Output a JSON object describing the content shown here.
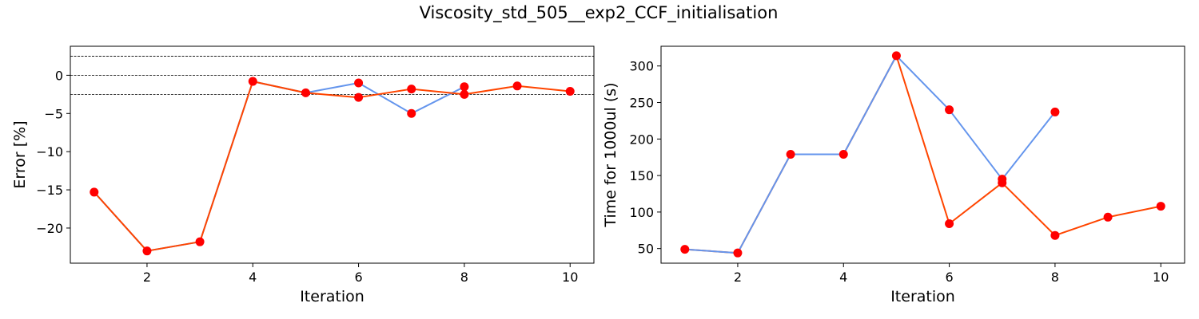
{
  "figure": {
    "title": "Viscosity_std_505__exp2_CCF_initialisation"
  },
  "colors": {
    "series_a": "#6495ED",
    "series_b": "#FF4500",
    "markers": "#FF0000",
    "reference_lines": "#000000"
  },
  "chart_data": [
    {
      "type": "line",
      "xlabel": "Iteration",
      "ylabel": "Error [%]",
      "xlim": [
        0.55,
        10.45
      ],
      "ylim": [
        -24.6,
        3.8
      ],
      "xticks": [
        2,
        4,
        6,
        8,
        10
      ],
      "yticks": [
        0,
        -5,
        -10,
        -15,
        -20
      ],
      "reference_lines": [
        2.5,
        0,
        -2.5
      ],
      "grid": false,
      "series": [
        {
          "color": "#6495ED",
          "x": [
            1,
            2,
            3,
            4,
            5,
            6,
            7,
            8
          ],
          "y": [
            -15.3,
            -23.0,
            -21.8,
            -0.8,
            -2.3,
            -1.0,
            -5.0,
            -1.5
          ]
        },
        {
          "color": "#FF4500",
          "x": [
            1,
            2,
            3,
            4,
            5,
            6,
            7,
            8,
            9,
            10
          ],
          "y": [
            -15.3,
            -23.0,
            -21.8,
            -0.8,
            -2.3,
            -2.9,
            -1.8,
            -2.5,
            -1.4,
            -2.1
          ]
        }
      ],
      "markers": {
        "color": "#FF0000",
        "x": [
          1,
          2,
          3,
          4,
          5,
          6,
          6,
          7,
          7,
          8,
          8,
          9,
          10
        ],
        "y": [
          -15.3,
          -23.0,
          -21.8,
          -0.8,
          -2.3,
          -1.0,
          -2.9,
          -1.8,
          -5.0,
          -1.5,
          -2.5,
          -1.4,
          -2.1
        ]
      }
    },
    {
      "type": "line",
      "xlabel": "Iteration",
      "ylabel": "Time for 1000ul (s)",
      "xlim": [
        0.55,
        10.45
      ],
      "ylim": [
        30,
        327
      ],
      "xticks": [
        2,
        4,
        6,
        8,
        10
      ],
      "yticks": [
        50,
        100,
        150,
        200,
        250,
        300
      ],
      "grid": false,
      "series": [
        {
          "color": "#FF4500",
          "x": [
            1,
            2,
            3,
            4,
            5,
            6,
            7,
            8,
            9,
            10
          ],
          "y": [
            49,
            44,
            179,
            179,
            314,
            84,
            140,
            68,
            93,
            108
          ]
        },
        {
          "color": "#6495ED",
          "x": [
            1,
            2,
            3,
            4,
            5,
            6,
            7,
            8
          ],
          "y": [
            49,
            44,
            179,
            179,
            314,
            240,
            145,
            237
          ]
        }
      ],
      "markers": {
        "color": "#FF0000",
        "x": [
          1,
          2,
          3,
          4,
          5,
          6,
          6,
          7,
          7,
          8,
          8,
          9,
          10
        ],
        "y": [
          49,
          44,
          179,
          179,
          314,
          240,
          84,
          145,
          140,
          237,
          68,
          93,
          108
        ]
      }
    }
  ]
}
